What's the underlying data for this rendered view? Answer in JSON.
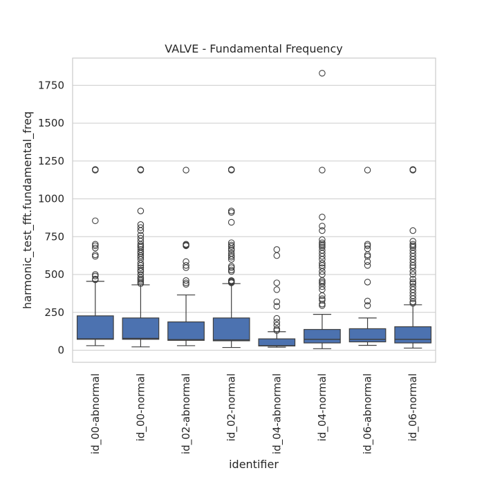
{
  "chart_data": {
    "type": "box",
    "title": "VALVE - Fundamental Frequency",
    "xlabel": "identifier",
    "ylabel": "harmonic_test_fft.fundamental_freq",
    "ylim": [
      -80,
      1930
    ],
    "yticks": [
      0,
      250,
      500,
      750,
      1000,
      1250,
      1500,
      1750
    ],
    "grid": true,
    "box_color": "#4c72b0",
    "categories": [
      "id_00-abnormal",
      "id_00-normal",
      "id_02-abnormal",
      "id_02-normal",
      "id_04-abnormal",
      "id_04-normal",
      "id_06-abnormal",
      "id_06-normal"
    ],
    "boxes": [
      {
        "label": "id_00-abnormal",
        "whisker_low": 30,
        "q1": 72,
        "median": 75,
        "q3": 227,
        "whisker_high": 455,
        "outliers": [
          465,
          470,
          490,
          500,
          620,
          630,
          675,
          690,
          700,
          855,
          1190,
          1192,
          1194
        ]
      },
      {
        "label": "id_00-normal",
        "whisker_low": 22,
        "q1": 72,
        "median": 78,
        "q3": 213,
        "whisker_high": 432,
        "outliers": [
          440,
          450,
          460,
          470,
          480,
          500,
          520,
          530,
          545,
          560,
          575,
          600,
          615,
          625,
          640,
          650,
          665,
          680,
          690,
          700,
          720,
          740,
          760,
          790,
          810,
          830,
          920,
          1190,
          1192,
          1194
        ]
      },
      {
        "label": "id_02-abnormal",
        "whisker_low": 30,
        "q1": 65,
        "median": 70,
        "q3": 187,
        "whisker_high": 365,
        "outliers": [
          435,
          445,
          460,
          545,
          560,
          585,
          690,
          695,
          700,
          1190
        ]
      },
      {
        "label": "id_02-normal",
        "whisker_low": 18,
        "q1": 62,
        "median": 68,
        "q3": 213,
        "whisker_high": 440,
        "outliers": [
          445,
          450,
          455,
          460,
          520,
          530,
          545,
          555,
          600,
          615,
          625,
          640,
          660,
          670,
          685,
          695,
          710,
          845,
          910,
          920,
          1190,
          1192,
          1194
        ]
      },
      {
        "label": "id_04-abnormal",
        "whisker_low": 20,
        "q1": 28,
        "median": 30,
        "q3": 75,
        "whisker_high": 122,
        "outliers": [
          130,
          140,
          165,
          185,
          210,
          290,
          320,
          400,
          445,
          625,
          665
        ]
      },
      {
        "label": "id_04-normal",
        "whisker_low": 10,
        "q1": 48,
        "median": 72,
        "q3": 137,
        "whisker_high": 237,
        "outliers": [
          295,
          305,
          330,
          340,
          360,
          400,
          420,
          440,
          450,
          460,
          500,
          520,
          545,
          560,
          575,
          600,
          620,
          640,
          660,
          680,
          690,
          700,
          710,
          730,
          790,
          820,
          880,
          1190,
          1830
        ]
      },
      {
        "label": "id_06-abnormal",
        "whisker_low": 32,
        "q1": 55,
        "median": 72,
        "q3": 142,
        "whisker_high": 213,
        "outliers": [
          295,
          325,
          450,
          560,
          585,
          620,
          630,
          670,
          690,
          700,
          1190
        ]
      },
      {
        "label": "id_06-normal",
        "whisker_low": 14,
        "q1": 48,
        "median": 72,
        "q3": 155,
        "whisker_high": 300,
        "outliers": [
          310,
          320,
          340,
          360,
          380,
          400,
          420,
          440,
          450,
          470,
          500,
          520,
          545,
          560,
          580,
          600,
          620,
          640,
          660,
          680,
          690,
          700,
          720,
          790,
          1190,
          1192,
          1194
        ]
      }
    ]
  }
}
